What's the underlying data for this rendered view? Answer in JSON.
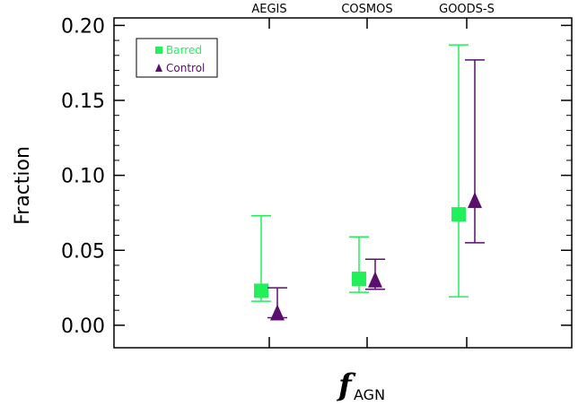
{
  "chart_data": {
    "type": "scatter",
    "categories": [
      "AEGIS",
      "COSMOS",
      "GOODS-S"
    ],
    "ylabel": "Fraction",
    "xlabel_main": "f",
    "xlabel_sub": "AGN",
    "ylim": [
      -0.015,
      0.205
    ],
    "yticks": [
      0.0,
      0.05,
      0.1,
      0.15,
      0.2
    ],
    "ytick_labels": [
      "0.00",
      "0.05",
      "0.10",
      "0.15",
      "0.20"
    ],
    "legend_position": "top-left",
    "series": [
      {
        "name": "Barred",
        "marker": "square",
        "color": "#22f05a",
        "values": [
          0.023,
          0.031,
          0.074
        ],
        "err_low": [
          0.016,
          0.022,
          0.019
        ],
        "err_high": [
          0.073,
          0.059,
          0.187
        ]
      },
      {
        "name": "Control",
        "marker": "triangle",
        "color": "#5a0e6e",
        "values": [
          0.008,
          0.03,
          0.083
        ],
        "err_low": [
          0.005,
          0.024,
          0.055
        ],
        "err_high": [
          0.025,
          0.044,
          0.177
        ]
      }
    ]
  }
}
